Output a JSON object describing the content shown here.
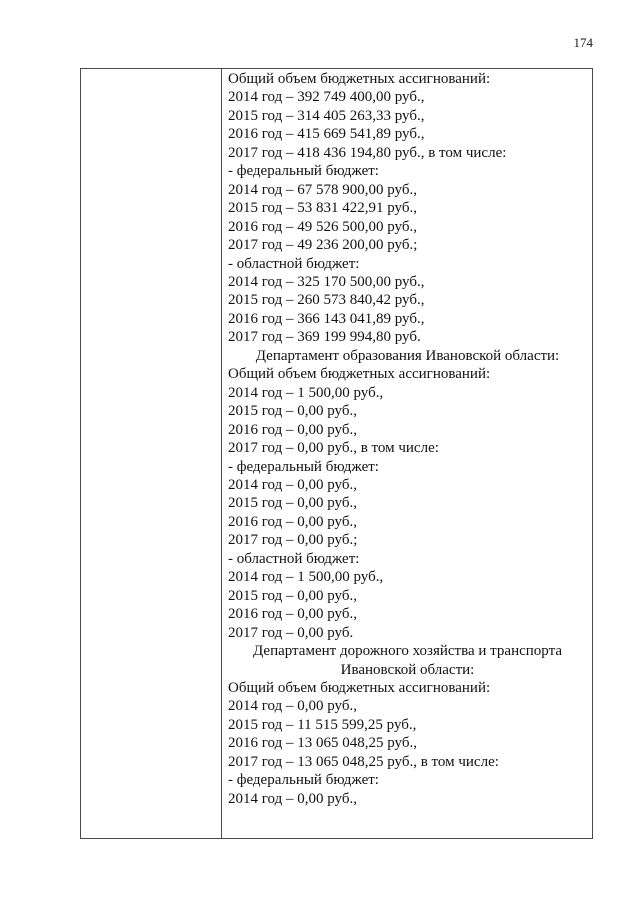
{
  "page": {
    "number": "174",
    "background_color": "#ffffff",
    "text_color": "#121212",
    "table_border_color": "#4a4a4a"
  },
  "table": {
    "left_cell": {
      "content": ""
    },
    "right_cell": {
      "lines": [
        {
          "text": "Общий объем бюджетных ассигнований:",
          "align": "left"
        },
        {
          "text": "2014 год – 392 749 400,00 руб.,",
          "align": "left"
        },
        {
          "text": "2015 год – 314 405 263,33 руб.,",
          "align": "left"
        },
        {
          "text": "2016 год – 415 669 541,89 руб.,",
          "align": "left"
        },
        {
          "text": "2017 год – 418 436 194,80 руб., в том числе:",
          "align": "left"
        },
        {
          "text": "- федеральный бюджет:",
          "align": "left"
        },
        {
          "text": "2014 год – 67 578 900,00 руб.,",
          "align": "left"
        },
        {
          "text": "2015 год – 53 831 422,91 руб.,",
          "align": "left"
        },
        {
          "text": "2016 год – 49 526 500,00 руб.,",
          "align": "left"
        },
        {
          "text": "2017 год – 49 236 200,00 руб.;",
          "align": "left"
        },
        {
          "text": "- областной бюджет:",
          "align": "left"
        },
        {
          "text": "2014 год – 325 170 500,00 руб.,",
          "align": "left"
        },
        {
          "text": "2015 год – 260 573 840,42 руб.,",
          "align": "left"
        },
        {
          "text": "2016 год – 366 143 041,89 руб.,",
          "align": "left"
        },
        {
          "text": "2017 год – 369 199 994,80 руб.",
          "align": "left"
        },
        {
          "text": "Департамент образования Ивановской области:",
          "align": "center"
        },
        {
          "text": "Общий объем бюджетных ассигнований:",
          "align": "left"
        },
        {
          "text": "2014 год – 1 500,00 руб.,",
          "align": "left"
        },
        {
          "text": "2015 год – 0,00 руб.,",
          "align": "left"
        },
        {
          "text": "2016 год – 0,00 руб.,",
          "align": "left"
        },
        {
          "text": "2017 год – 0,00 руб., в том числе:",
          "align": "left"
        },
        {
          "text": "- федеральный бюджет:",
          "align": "left"
        },
        {
          "text": "2014 год – 0,00 руб.,",
          "align": "left"
        },
        {
          "text": "2015 год – 0,00 руб.,",
          "align": "left"
        },
        {
          "text": "2016 год – 0,00 руб.,",
          "align": "left"
        },
        {
          "text": "2017 год – 0,00 руб.;",
          "align": "left"
        },
        {
          "text": "- областной бюджет:",
          "align": "left"
        },
        {
          "text": "2014 год – 1 500,00 руб.,",
          "align": "left"
        },
        {
          "text": "2015 год – 0,00 руб.,",
          "align": "left"
        },
        {
          "text": "2016 год – 0,00 руб.,",
          "align": "left"
        },
        {
          "text": "2017 год – 0,00 руб.",
          "align": "left"
        },
        {
          "text": "Департамент дорожного хозяйства и транспорта",
          "align": "center"
        },
        {
          "text": "Ивановской области:",
          "align": "center"
        },
        {
          "text": "Общий объем бюджетных ассигнований:",
          "align": "left"
        },
        {
          "text": "2014 год – 0,00 руб.,",
          "align": "left"
        },
        {
          "text": "2015 год – 11 515 599,25 руб.,",
          "align": "left"
        },
        {
          "text": "2016 год – 13 065 048,25 руб.,",
          "align": "left"
        },
        {
          "text": "2017 год – 13 065 048,25 руб., в том числе:",
          "align": "left"
        },
        {
          "text": "- федеральный бюджет:",
          "align": "left"
        },
        {
          "text": "2014 год – 0,00 руб.,",
          "align": "left"
        }
      ]
    }
  }
}
